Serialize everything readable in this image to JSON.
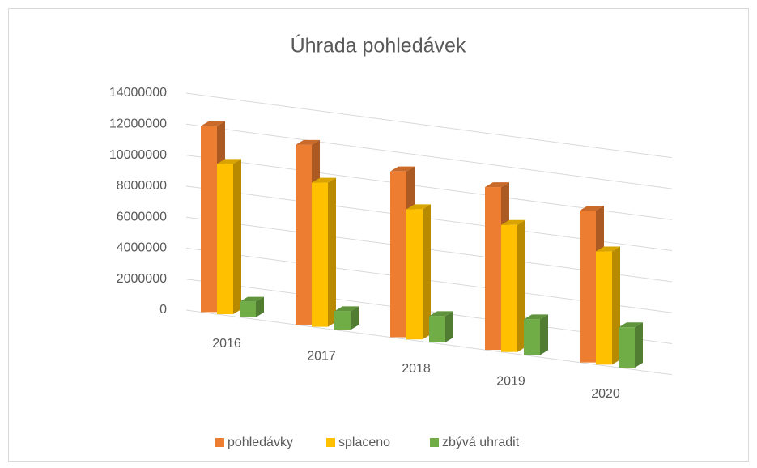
{
  "chart_data": {
    "type": "bar3d",
    "title": "Úhrada pohledávek",
    "categories": [
      "2016",
      "2017",
      "2018",
      "2019",
      "2020"
    ],
    "series": [
      {
        "name": "pohledávky",
        "color": "#ed7d31",
        "values": [
          12000000,
          11600000,
          10700000,
          10500000,
          9800000
        ]
      },
      {
        "name": "splaceno",
        "color": "#ffc000",
        "values": [
          9700000,
          9300000,
          8400000,
          8200000,
          7300000
        ]
      },
      {
        "name": "zbývá uhradit",
        "color": "#70ad47",
        "values": [
          1000000,
          1200000,
          1700000,
          2300000,
          2600000
        ]
      }
    ],
    "ylim": [
      0,
      14000000
    ],
    "yticks": [
      0,
      2000000,
      4000000,
      6000000,
      8000000,
      10000000,
      12000000,
      14000000
    ],
    "grid": true,
    "legend": "bottom"
  }
}
